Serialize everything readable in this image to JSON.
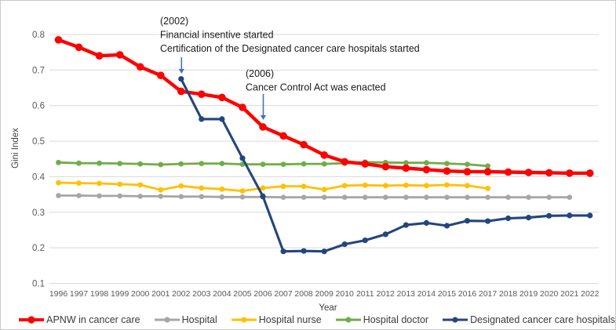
{
  "figure": {
    "y_axis_title": "Gini Index",
    "x_axis_title": "Year"
  },
  "chart_data": {
    "type": "line",
    "title": "",
    "xlabel": "Year",
    "ylabel": "Gini Index",
    "ylim": [
      0.1,
      0.8
    ],
    "ytick_step": 0.1,
    "yticks": [
      "0.1",
      "0.2",
      "0.3",
      "0.4",
      "0.5",
      "0.6",
      "0.7",
      "0.8"
    ],
    "grid": "horizontal",
    "gridline_color": "#d9d9d9",
    "legend_position": "bottom",
    "x": [
      1996,
      1997,
      1998,
      1999,
      2000,
      2001,
      2002,
      2003,
      2004,
      2005,
      2006,
      2007,
      2008,
      2009,
      2010,
      2011,
      2012,
      2013,
      2014,
      2015,
      2016,
      2017,
      2018,
      2019,
      2020,
      2021,
      2022
    ],
    "series": [
      {
        "name": "APNW in cancer care",
        "color": "#fe0000",
        "values": [
          0.785,
          0.764,
          0.74,
          0.743,
          0.709,
          0.685,
          0.64,
          0.632,
          0.623,
          0.595,
          0.54,
          0.515,
          0.49,
          0.461,
          0.442,
          0.436,
          0.428,
          0.424,
          0.42,
          0.416,
          0.414,
          0.414,
          0.413,
          0.412,
          0.411,
          0.41,
          0.41
        ]
      },
      {
        "name": "Hospital",
        "color": "#a6a6a6",
        "values": [
          0.347,
          0.347,
          0.346,
          0.346,
          0.345,
          0.345,
          0.344,
          0.344,
          0.343,
          0.343,
          0.343,
          0.342,
          0.342,
          0.342,
          0.342,
          0.342,
          0.342,
          0.342,
          0.342,
          0.342,
          0.342,
          0.342,
          0.342,
          0.342,
          0.342,
          0.342,
          null
        ]
      },
      {
        "name": "Hospital nurse",
        "color": "#ffc000",
        "values": [
          0.383,
          0.382,
          0.381,
          0.379,
          0.377,
          0.363,
          0.374,
          0.368,
          0.365,
          0.36,
          0.368,
          0.373,
          0.373,
          0.364,
          0.375,
          0.376,
          0.375,
          0.376,
          0.375,
          0.377,
          0.375,
          0.367,
          null,
          null,
          null,
          null,
          null
        ]
      },
      {
        "name": "Hospital doctor",
        "color": "#70ad47",
        "values": [
          0.44,
          0.438,
          0.438,
          0.437,
          0.436,
          0.434,
          0.436,
          0.437,
          0.437,
          0.435,
          0.435,
          0.435,
          0.436,
          0.436,
          0.438,
          0.441,
          0.44,
          0.439,
          0.439,
          0.437,
          0.435,
          0.43,
          null,
          null,
          null,
          null,
          null
        ]
      },
      {
        "name": "Designated cancer care hospitals",
        "color": "#23467d",
        "values": [
          null,
          null,
          null,
          null,
          null,
          null,
          0.675,
          0.562,
          0.562,
          0.452,
          0.345,
          0.19,
          0.191,
          0.19,
          0.21,
          0.221,
          0.238,
          0.264,
          0.27,
          0.262,
          0.276,
          0.275,
          0.283,
          0.285,
          0.29,
          0.291,
          0.291
        ]
      }
    ],
    "annotations": [
      {
        "lines": [
          "(2002)",
          "Financial insentive started",
          "Certification of  the Designated cancer care hospitals started"
        ],
        "arrow_year": 2002,
        "arrow_color": "#4472c4"
      },
      {
        "lines": [
          "(2006)",
          "Cancer Control Act was enacted"
        ],
        "arrow_year": 2006,
        "arrow_color": "#4472c4"
      }
    ]
  }
}
